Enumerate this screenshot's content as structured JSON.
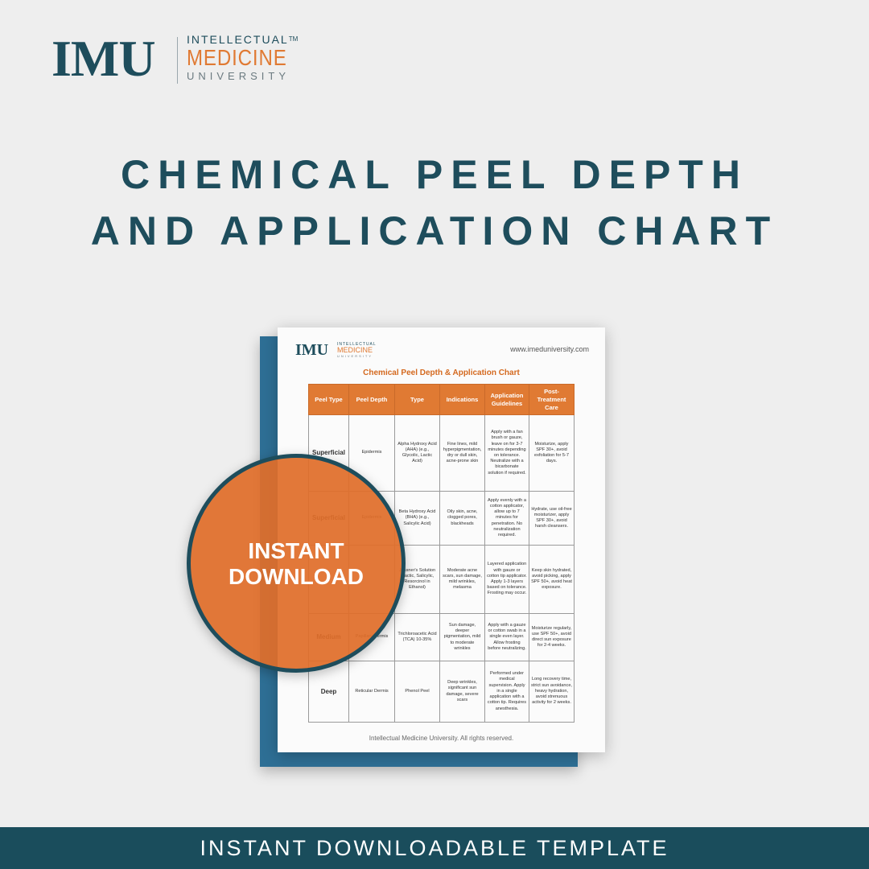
{
  "brand": {
    "mark": "IMU",
    "plus": "+",
    "line1": "INTELLECTUAL",
    "trademark": "TM",
    "line2": "MEDICINE",
    "line3": "UNIVERSITY"
  },
  "title": {
    "line1": "CHEMICAL PEEL DEPTH",
    "line2": "AND APPLICATION CHART"
  },
  "document": {
    "logo_mark": "IMU",
    "logo_line1": "INTELLECTUAL",
    "logo_line2": "MEDICINE",
    "logo_line3": "UNIVERSITY",
    "url": "www.imeduniversity.com",
    "title": "Chemical Peel Depth & Application Chart",
    "headers": [
      "Peel Type",
      "Peel Depth",
      "Type",
      "Indications",
      "Application Guidelines",
      "Post-Treatment Care"
    ],
    "rows": [
      {
        "peel_type": "Superficial",
        "depth": "Epidermis",
        "type": "Alpha Hydroxy Acid (AHA) (e.g., Glycolic, Lactic Acid)",
        "indications": "Fine lines, mild hyperpigmentation, dry or dull skin, acne-prone skin",
        "guidelines": "Apply with a fan brush or gauze, leave on for 3-7 minutes depending on tolerance. Neutralize with a bicarbonate solution if required.",
        "care": "Moisturize, apply SPF 30+, avoid exfoliation for 5-7 days."
      },
      {
        "peel_type": "Superficial",
        "depth": "Epidermis",
        "type": "Beta Hydroxy Acid (BHA) (e.g., Salicylic Acid)",
        "indications": "Oily skin, acne, clogged pores, blackheads",
        "guidelines": "Apply evenly with a cotton applicator, allow up to 7 minutes for penetration. No neutralization required.",
        "care": "Hydrate, use oil-free moisturizer, apply SPF 30+, avoid harsh cleansers."
      },
      {
        "peel_type": "",
        "depth": "",
        "type": "Jessner's Solution (Lactic, Salicylic, Resorcinol in Ethanol)",
        "indications": "Moderate acne scars, sun damage, mild wrinkles, melasma",
        "guidelines": "Layered application with gauze or cotton tip applicator. Apply 1-3 layers based on tolerance. Frosting may occur.",
        "care": "Keep skin hydrated, avoid picking, apply SPF 50+, avoid heat exposure."
      },
      {
        "peel_type": "Medium",
        "depth": "Papillary Dermis",
        "type": "Trichloroacetic Acid (TCA) 10-35%",
        "indications": "Sun damage, deeper pigmentation, mild to moderate wrinkles",
        "guidelines": "Apply with a gauze or cotton swab in a single even layer. Allow frosting before neutralizing.",
        "care": "Moisturize regularly, use SPF 50+, avoid direct sun exposure for 2-4 weeks."
      },
      {
        "peel_type": "Deep",
        "depth": "Reticular Dermis",
        "type": "Phenol Peel",
        "indications": "Deep wrinkles, significant sun damage, severe scars",
        "guidelines": "Performed under medical supervision. Apply in a single application with a cotton tip. Requires anesthesia.",
        "care": "Long recovery time, strict sun avoidance, heavy hydration, avoid strenuous activity for 2 weeks."
      }
    ],
    "footer": "Intellectual Medicine University. All rights reserved."
  },
  "badge": {
    "line1": "INSTANT",
    "line2": "DOWNLOAD"
  },
  "bottom_bar": {
    "label": "INSTANT DOWNLOADABLE TEMPLATE"
  },
  "colors": {
    "brand_teal": "#1e4d5c",
    "brand_orange": "#e07a33",
    "doc_back_blue": "#2e6f95",
    "background": "#eeeeee"
  }
}
